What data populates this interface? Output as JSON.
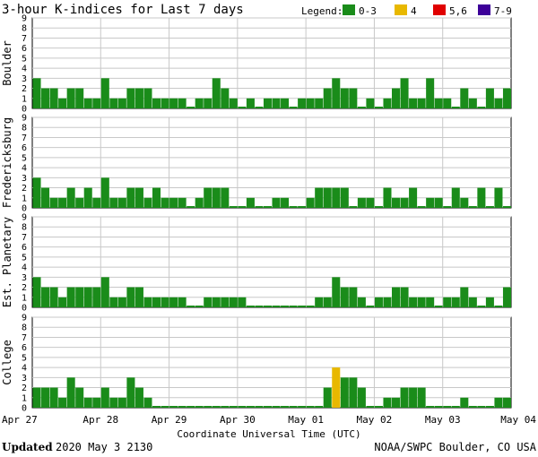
{
  "title": "3-hour K-indices for Last 7 days",
  "legend": {
    "label": "Legend:",
    "items": [
      {
        "label": "0-3",
        "color": "#1a8c1a"
      },
      {
        "label": "4",
        "color": "#e8b800"
      },
      {
        "label": "5,6",
        "color": "#e00000"
      },
      {
        "label": "7-9",
        "color": "#3d0099"
      }
    ]
  },
  "footer": {
    "updated_label": "Updated",
    "updated_value": "2020 May  3 2130",
    "source": "NOAA/SWPC Boulder, CO USA"
  },
  "chart_data": {
    "type": "bar",
    "xlabel": "Coordinate Universal Time (UTC)",
    "x_ticks": [
      "Apr 27",
      "Apr 28",
      "Apr 29",
      "Apr 30",
      "May 01",
      "May 02",
      "May 03",
      "May 04"
    ],
    "y_ticks": [
      "0",
      "1",
      "2",
      "3",
      "4",
      "5",
      "6",
      "7",
      "8",
      "9"
    ],
    "ylim": [
      0,
      9
    ],
    "grid": true,
    "interval_hours": 3,
    "panels": [
      {
        "name": "Boulder",
        "values": [
          3,
          2,
          2,
          1,
          2,
          2,
          1,
          1,
          3,
          1,
          1,
          2,
          2,
          2,
          1,
          1,
          1,
          1,
          0,
          1,
          1,
          3,
          2,
          1,
          0,
          1,
          0,
          1,
          1,
          1,
          0,
          1,
          1,
          1,
          2,
          3,
          2,
          2,
          0,
          1,
          0,
          1,
          2,
          3,
          1,
          1,
          3,
          1,
          1,
          0,
          2,
          1,
          0,
          2,
          1,
          2
        ]
      },
      {
        "name": "Fredericksburg",
        "values": [
          3,
          2,
          1,
          1,
          2,
          1,
          2,
          1,
          3,
          1,
          1,
          2,
          2,
          1,
          2,
          1,
          1,
          1,
          0,
          1,
          2,
          2,
          2,
          0,
          0,
          1,
          0,
          0,
          1,
          1,
          0,
          0,
          1,
          2,
          2,
          2,
          2,
          0,
          1,
          1,
          0,
          2,
          1,
          1,
          2,
          0,
          1,
          1,
          0,
          2,
          1,
          0,
          2,
          0,
          2,
          0
        ]
      },
      {
        "name": "Est. Planetary",
        "values": [
          3,
          2,
          2,
          1,
          2,
          2,
          2,
          2,
          3,
          1,
          1,
          2,
          2,
          1,
          1,
          1,
          1,
          1,
          0,
          0,
          1,
          1,
          1,
          1,
          1,
          0,
          0,
          0,
          0,
          0,
          0,
          0,
          0,
          1,
          1,
          3,
          2,
          2,
          1,
          0,
          1,
          1,
          2,
          2,
          1,
          1,
          1,
          0,
          1,
          1,
          2,
          1,
          0,
          1,
          0,
          2
        ]
      },
      {
        "name": "College",
        "values": [
          2,
          2,
          2,
          1,
          3,
          2,
          1,
          1,
          2,
          1,
          1,
          3,
          2,
          1,
          0,
          0,
          0,
          0,
          0,
          0,
          0,
          0,
          0,
          0,
          0,
          0,
          0,
          0,
          0,
          0,
          0,
          0,
          0,
          0,
          2,
          4,
          3,
          3,
          2,
          0,
          0,
          1,
          1,
          2,
          2,
          2,
          0,
          0,
          0,
          0,
          1,
          0,
          0,
          0,
          1,
          1
        ]
      }
    ]
  }
}
